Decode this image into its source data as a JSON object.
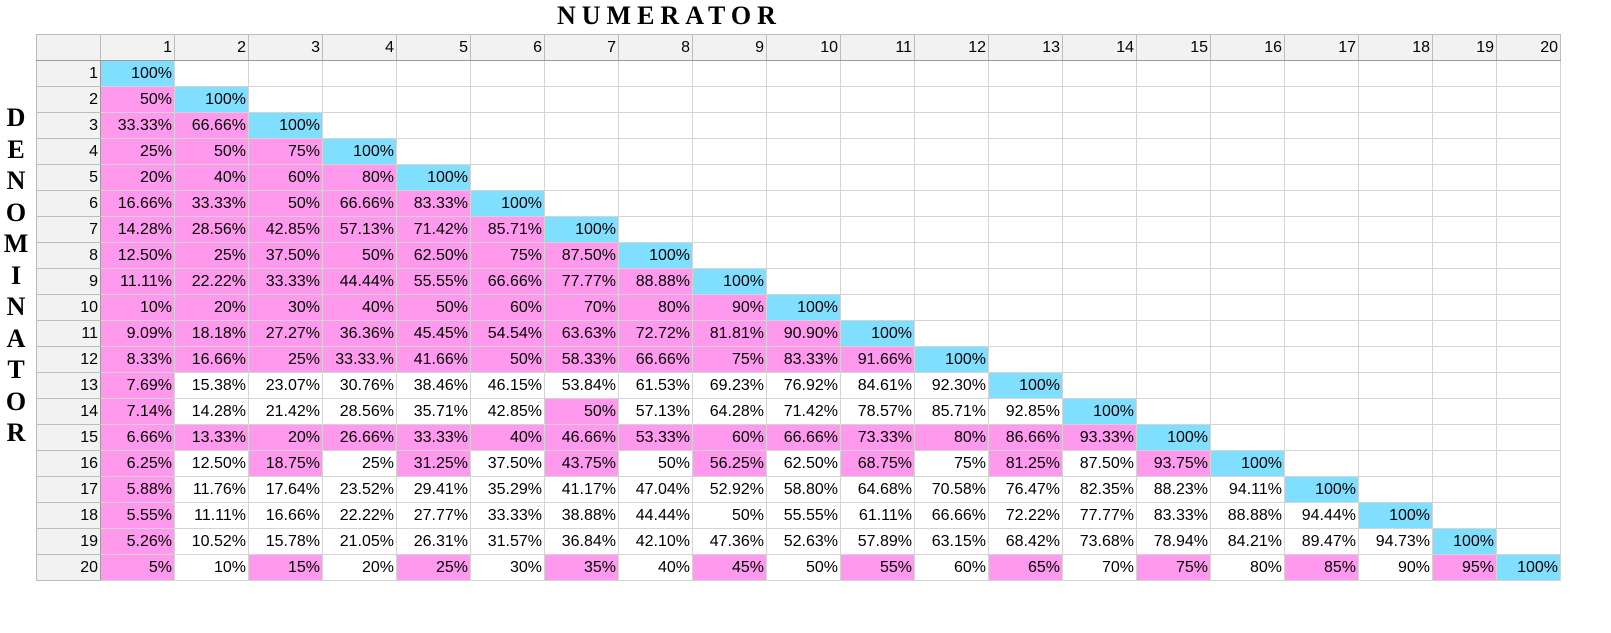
{
  "title": "NUMERATOR",
  "side_label": "DENOMINATOR",
  "colors": {
    "diagonal": "#80deff",
    "highlight": "#ff99ee",
    "header": "#f2f2f2"
  },
  "column_headers": [
    "1",
    "2",
    "3",
    "4",
    "5",
    "6",
    "7",
    "8",
    "9",
    "10",
    "11",
    "12",
    "13",
    "14",
    "15",
    "16",
    "17",
    "18",
    "19",
    "20"
  ],
  "row_headers": [
    "1",
    "2",
    "3",
    "4",
    "5",
    "6",
    "7",
    "8",
    "9",
    "10",
    "11",
    "12",
    "13",
    "14",
    "15",
    "16",
    "17",
    "18",
    "19",
    "20"
  ],
  "rows": [
    [
      "100%"
    ],
    [
      "50%",
      "100%"
    ],
    [
      "33.33%",
      "66.66%",
      "100%"
    ],
    [
      "25%",
      "50%",
      "75%",
      "100%"
    ],
    [
      "20%",
      "40%",
      "60%",
      "80%",
      "100%"
    ],
    [
      "16.66%",
      "33.33%",
      "50%",
      "66.66%",
      "83.33%",
      "100%"
    ],
    [
      "14.28%",
      "28.56%",
      "42.85%",
      "57.13%",
      "71.42%",
      "85.71%",
      "100%"
    ],
    [
      "12.50%",
      "25%",
      "37.50%",
      "50%",
      "62.50%",
      "75%",
      "87.50%",
      "100%"
    ],
    [
      "11.11%",
      "22.22%",
      "33.33%",
      "44.44%",
      "55.55%",
      "66.66%",
      "77.77%",
      "88.88%",
      "100%"
    ],
    [
      "10%",
      "20%",
      "30%",
      "40%",
      "50%",
      "60%",
      "70%",
      "80%",
      "90%",
      "100%"
    ],
    [
      "9.09%",
      "18.18%",
      "27.27%",
      "36.36%",
      "45.45%",
      "54.54%",
      "63.63%",
      "72.72%",
      "81.81%",
      "90.90%",
      "100%"
    ],
    [
      "8.33%",
      "16.66%",
      "25%",
      "33.33.%",
      "41.66%",
      "50%",
      "58.33%",
      "66.66%",
      "75%",
      "83.33%",
      "91.66%",
      "100%"
    ],
    [
      "7.69%",
      "15.38%",
      "23.07%",
      "30.76%",
      "38.46%",
      "46.15%",
      "53.84%",
      "61.53%",
      "69.23%",
      "76.92%",
      "84.61%",
      "92.30%",
      "100%"
    ],
    [
      "7.14%",
      "14.28%",
      "21.42%",
      "28.56%",
      "35.71%",
      "42.85%",
      "50%",
      "57.13%",
      "64.28%",
      "71.42%",
      "78.57%",
      "85.71%",
      "92.85%",
      "100%"
    ],
    [
      "6.66%",
      "13.33%",
      "20%",
      "26.66%",
      "33.33%",
      "40%",
      "46.66%",
      "53.33%",
      "60%",
      "66.66%",
      "73.33%",
      "80%",
      "86.66%",
      "93.33%",
      "100%"
    ],
    [
      "6.25%",
      "12.50%",
      "18.75%",
      "25%",
      "31.25%",
      "37.50%",
      "43.75%",
      "50%",
      "56.25%",
      "62.50%",
      "68.75%",
      "75%",
      "81.25%",
      "87.50%",
      "93.75%",
      "100%"
    ],
    [
      "5.88%",
      "11.76%",
      "17.64%",
      "23.52%",
      "29.41%",
      "35.29%",
      "41.17%",
      "47.04%",
      "52.92%",
      "58.80%",
      "64.68%",
      "70.58%",
      "76.47%",
      "82.35%",
      "88.23%",
      "94.11%",
      "100%"
    ],
    [
      "5.55%",
      "11.11%",
      "16.66%",
      "22.22%",
      "27.77%",
      "33.33%",
      "38.88%",
      "44.44%",
      "50%",
      "55.55%",
      "61.11%",
      "66.66%",
      "72.22%",
      "77.77%",
      "83.33%",
      "88.88%",
      "94.44%",
      "100%"
    ],
    [
      "5.26%",
      "10.52%",
      "15.78%",
      "21.05%",
      "26.31%",
      "31.57%",
      "36.84%",
      "42.10%",
      "47.36%",
      "52.63%",
      "57.89%",
      "63.15%",
      "68.42%",
      "73.68%",
      "78.94%",
      "84.21%",
      "89.47%",
      "94.73%",
      "100%"
    ],
    [
      "5%",
      "10%",
      "15%",
      "20%",
      "25%",
      "30%",
      "35%",
      "40%",
      "45%",
      "50%",
      "55%",
      "60%",
      "65%",
      "70%",
      "75%",
      "80%",
      "85%",
      "90%",
      "95%",
      "100%"
    ]
  ],
  "highlight_rows": {
    "13": [
      1
    ],
    "14": [
      1,
      7
    ],
    "15": [
      1,
      2,
      3,
      4,
      5,
      6,
      7,
      8,
      9,
      10,
      11,
      12,
      13,
      14
    ],
    "16": [
      1,
      3,
      5,
      7,
      9,
      11,
      13,
      15
    ],
    "17": [
      1
    ],
    "18": [
      1
    ],
    "19": [
      1
    ],
    "20": [
      1,
      3,
      5,
      7,
      9,
      11,
      13,
      15,
      17,
      19
    ]
  }
}
